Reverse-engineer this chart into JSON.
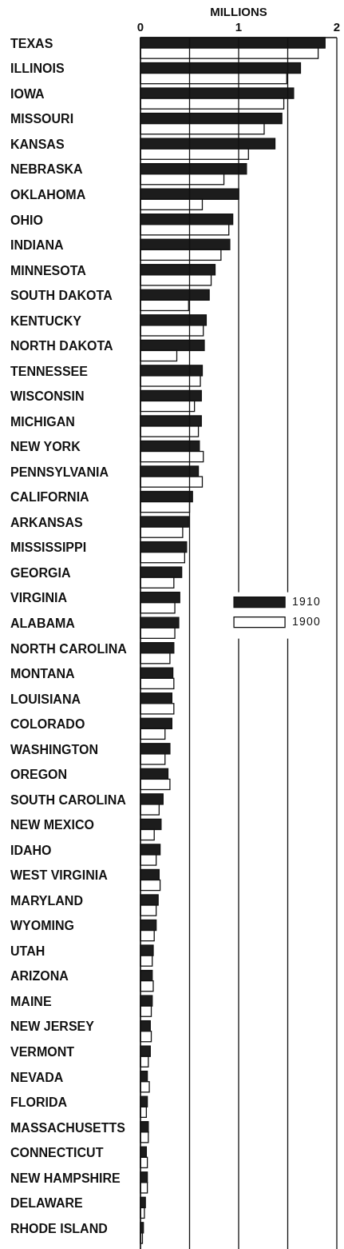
{
  "chart_data": {
    "type": "bar",
    "orientation": "horizontal",
    "xlabel": "MILLIONS",
    "categories": [
      "TEXAS",
      "ILLINOIS",
      "IOWA",
      "MISSOURI",
      "KANSAS",
      "NEBRASKA",
      "OKLAHOMA",
      "OHIO",
      "INDIANA",
      "MINNESOTA",
      "SOUTH DAKOTA",
      "KENTUCKY",
      "NORTH DAKOTA",
      "TENNESSEE",
      "WISCONSIN",
      "MICHIGAN",
      "NEW YORK",
      "PENNSYLVANIA",
      "CALIFORNIA",
      "ARKANSAS",
      "MISSISSIPPI",
      "GEORGIA",
      "VIRGINIA",
      "ALABAMA",
      "NORTH CAROLINA",
      "MONTANA",
      "LOUISIANA",
      "COLORADO",
      "WASHINGTON",
      "OREGON",
      "SOUTH CAROLINA",
      "NEW MEXICO",
      "IDAHO",
      "WEST VIRGINIA",
      "MARYLAND",
      "WYOMING",
      "UTAH",
      "ARIZONA",
      "MAINE",
      "NEW JERSEY",
      "VERMONT",
      "NEVADA",
      "FLORIDA",
      "MASSACHUSETTS",
      "CONNECTICUT",
      "NEW HAMPSHIRE",
      "DELAWARE",
      "RHODE ISLAND"
    ],
    "series": [
      {
        "name": "1910",
        "color": "#1c1c1c",
        "values": [
          1.88,
          1.63,
          1.56,
          1.44,
          1.37,
          1.08,
          1.0,
          0.94,
          0.91,
          0.76,
          0.7,
          0.67,
          0.65,
          0.63,
          0.62,
          0.62,
          0.6,
          0.59,
          0.53,
          0.49,
          0.47,
          0.42,
          0.4,
          0.39,
          0.34,
          0.33,
          0.32,
          0.32,
          0.3,
          0.28,
          0.23,
          0.21,
          0.2,
          0.19,
          0.18,
          0.16,
          0.13,
          0.12,
          0.12,
          0.1,
          0.1,
          0.07,
          0.07,
          0.08,
          0.06,
          0.07,
          0.05,
          0.03
        ]
      },
      {
        "name": "1900",
        "color": "#ffffff",
        "values": [
          1.81,
          1.49,
          1.46,
          1.26,
          1.1,
          0.85,
          0.63,
          0.9,
          0.82,
          0.72,
          0.49,
          0.64,
          0.37,
          0.61,
          0.55,
          0.59,
          0.64,
          0.63,
          0.5,
          0.43,
          0.45,
          0.34,
          0.35,
          0.35,
          0.3,
          0.34,
          0.34,
          0.25,
          0.25,
          0.3,
          0.19,
          0.14,
          0.16,
          0.2,
          0.16,
          0.14,
          0.12,
          0.13,
          0.11,
          0.11,
          0.08,
          0.09,
          0.06,
          0.08,
          0.07,
          0.07,
          0.04,
          0.02
        ]
      }
    ],
    "xlim": [
      0,
      2
    ],
    "xticks": [
      0,
      {
        "value": 0.5,
        "label": null
      },
      1,
      {
        "value": 1.5,
        "label": null
      },
      2
    ],
    "grid": "x",
    "legend": "right"
  }
}
